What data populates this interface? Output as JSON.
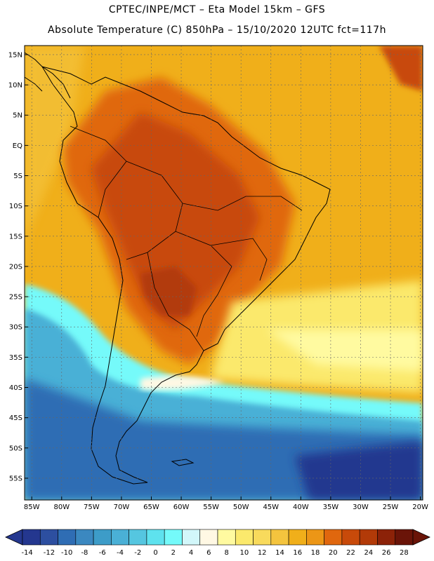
{
  "header": {
    "line1": "CPTEC/INPE/MCT –  Eta Model 15km – GFS",
    "line2": "Absolute Temperature (C) 850hPa – 15/10/2020 12UTC fct=117h"
  },
  "map": {
    "variable": "Absolute Temperature",
    "unit": "C",
    "level": "850hPa",
    "lat_labels": [
      "15N",
      "10N",
      "5N",
      "EQ",
      "5S",
      "10S",
      "15S",
      "20S",
      "25S",
      "30S",
      "35S",
      "40S",
      "45S",
      "50S",
      "55S"
    ],
    "lat_values": [
      15,
      10,
      5,
      0,
      -5,
      -10,
      -15,
      -20,
      -25,
      -30,
      -35,
      -40,
      -45,
      -50,
      -55
    ],
    "lon_labels": [
      "85W",
      "80W",
      "75W",
      "70W",
      "65W",
      "60W",
      "55W",
      "50W",
      "45W",
      "40W",
      "35W",
      "30W",
      "25W",
      "20W"
    ],
    "lon_values": [
      -85,
      -80,
      -75,
      -70,
      -65,
      -60,
      -55,
      -50,
      -45,
      -40,
      -35,
      -30,
      -25,
      -20
    ]
  },
  "colorbar": {
    "labels": [
      "-14",
      "-12",
      "-10",
      "-8",
      "-6",
      "-4",
      "-2",
      "0",
      "2",
      "4",
      "6",
      "8",
      "10",
      "12",
      "14",
      "16",
      "18",
      "20",
      "22",
      "24",
      "26",
      "28"
    ],
    "colors": [
      "#24378f",
      "#2d4fa0",
      "#2f6db4",
      "#3b88c0",
      "#3d9cc8",
      "#4ab0d6",
      "#55c6e0",
      "#5ee2ee",
      "#74fafa",
      "#d2f7fa",
      "#fff8e4",
      "#fffaa0",
      "#fbe96c",
      "#f8da5c",
      "#f4c43e",
      "#f0af1a",
      "#ec9616",
      "#e0670e",
      "#c84a0a",
      "#b23a08",
      "#8c2208",
      "#6a1408"
    ],
    "underflow_color": "#24378f",
    "overflow_color": "#6a1408"
  }
}
